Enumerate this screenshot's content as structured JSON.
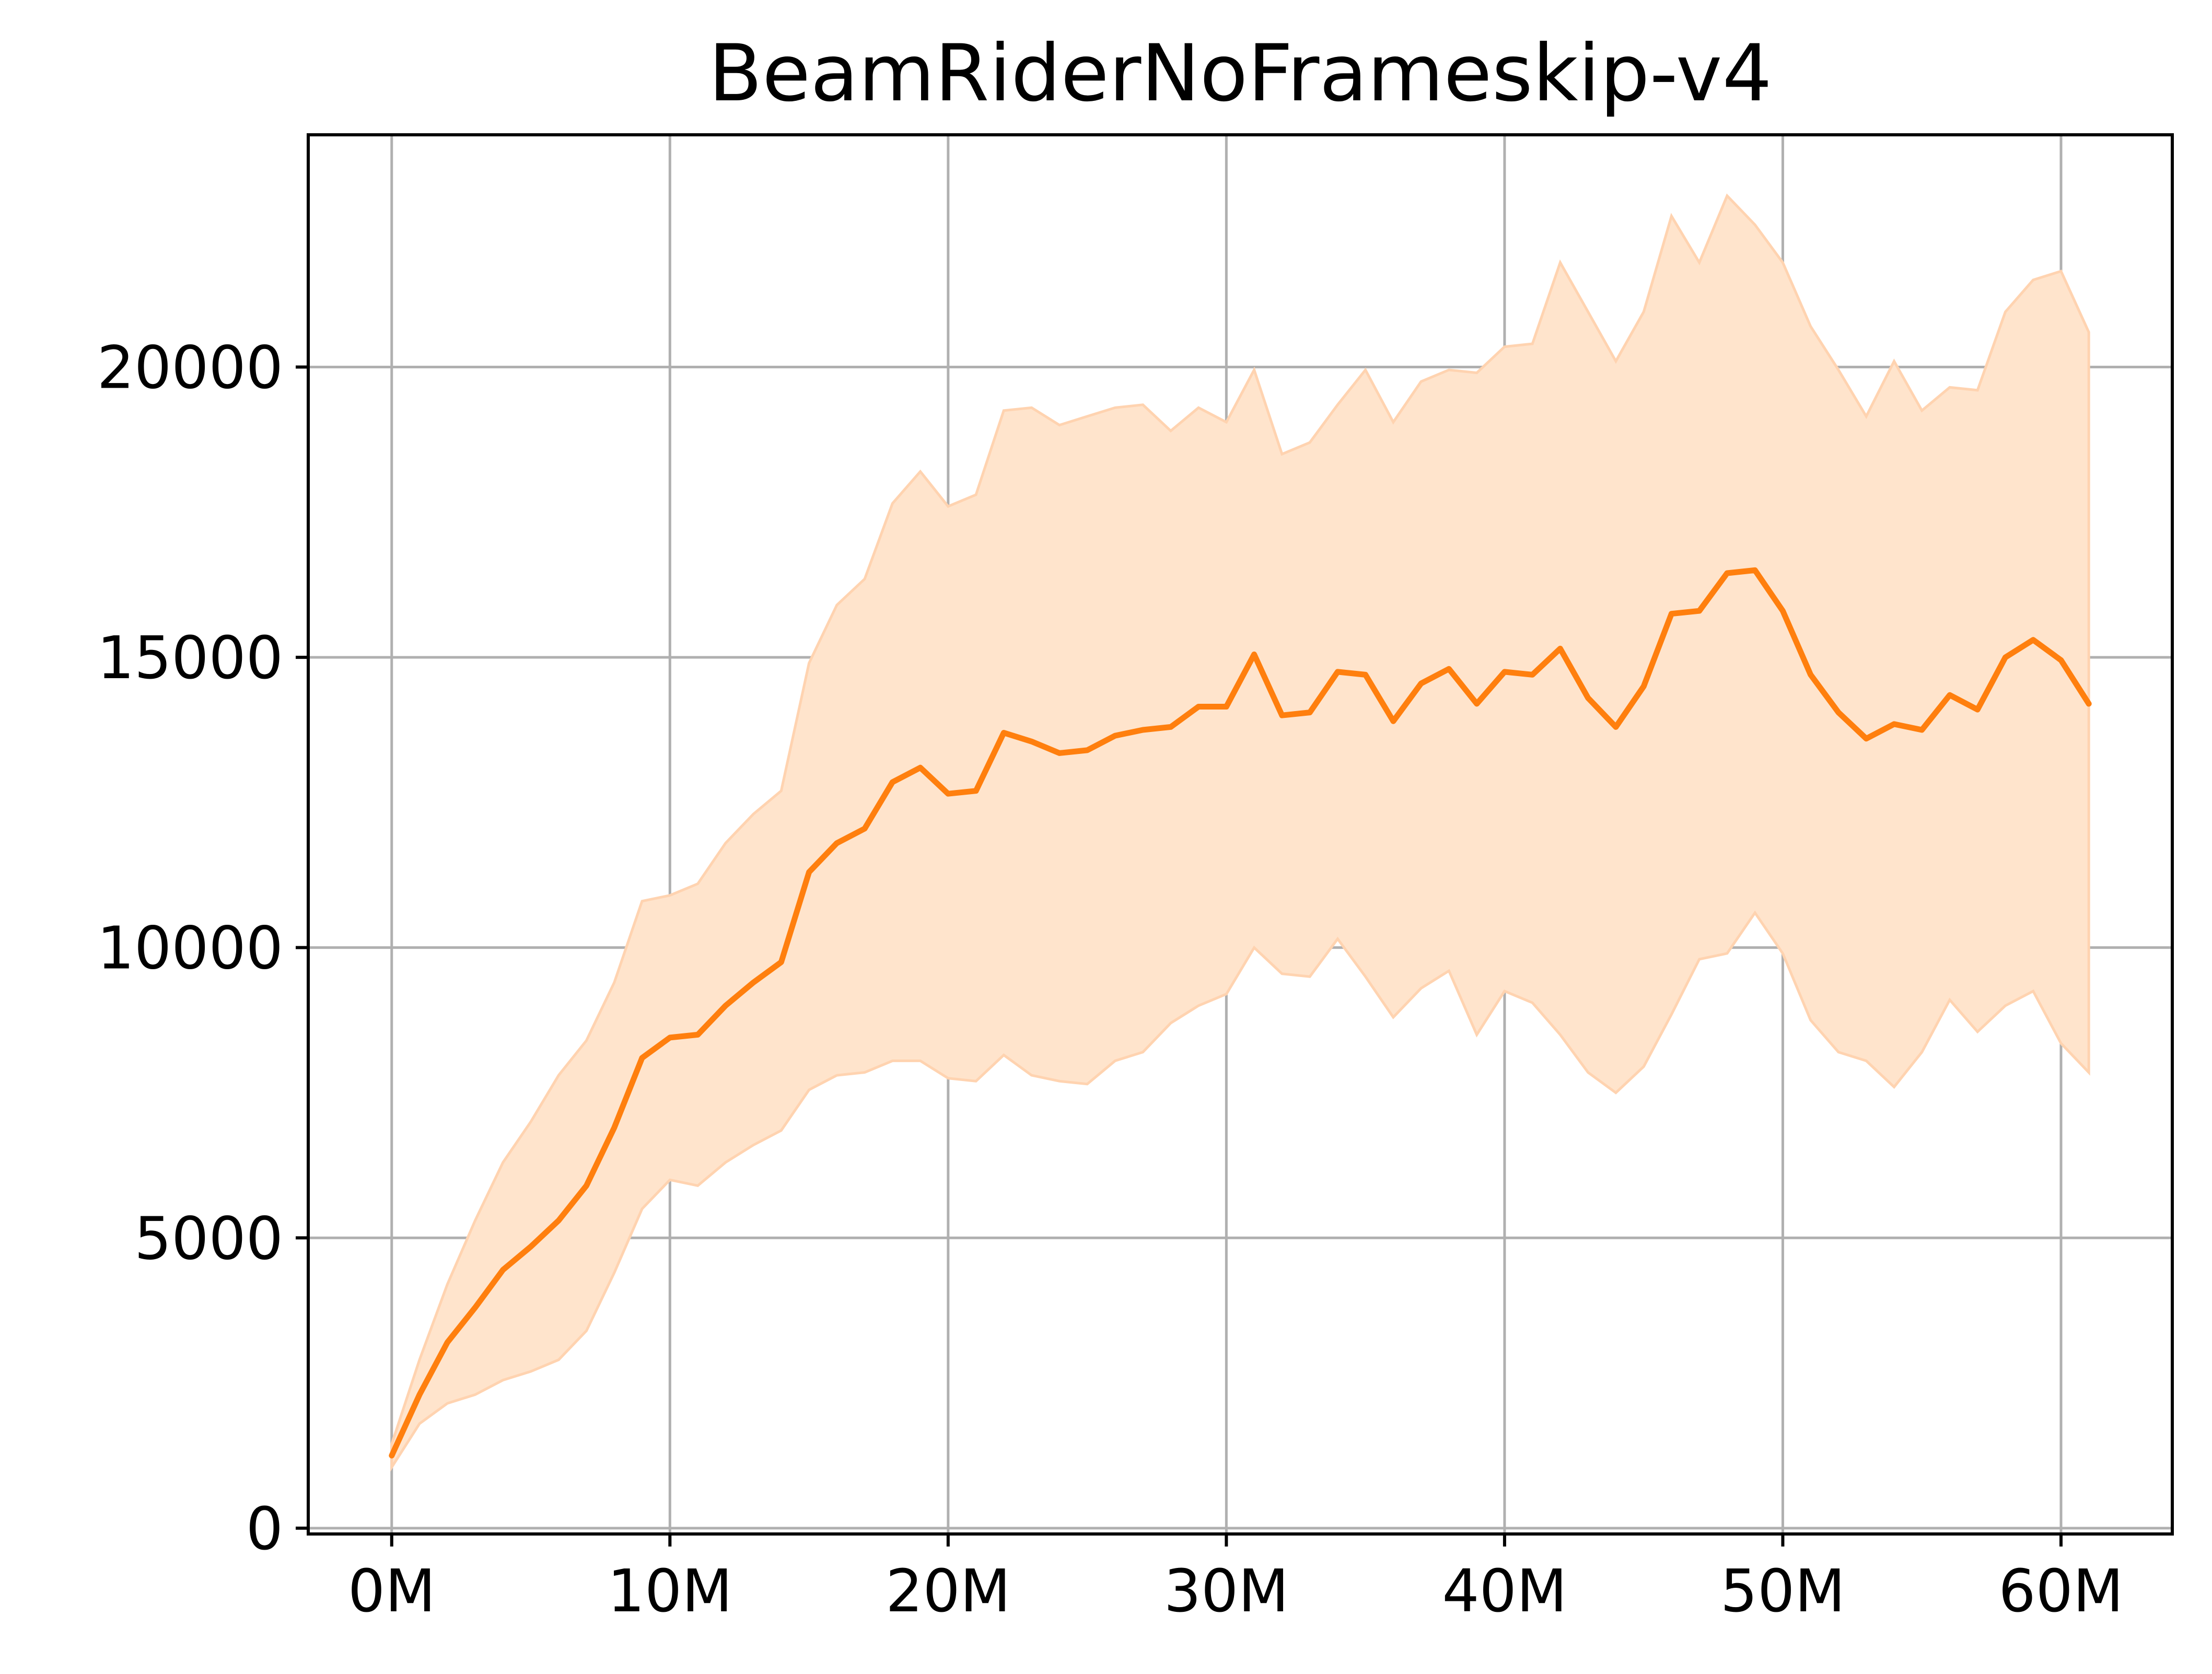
{
  "chart_data": {
    "type": "line",
    "title": "BeamRiderNoFrameskip-v4",
    "xlabel": "",
    "ylabel": "",
    "xlim": [
      -3,
      64
    ],
    "ylim": [
      -100,
      24000
    ],
    "x_ticks": [
      0,
      10,
      20,
      30,
      40,
      50,
      60
    ],
    "x_tick_labels": [
      "0M",
      "10M",
      "20M",
      "30M",
      "40M",
      "50M",
      "60M"
    ],
    "y_ticks": [
      0,
      5000,
      10000,
      15000,
      20000
    ],
    "y_tick_labels": [
      "0",
      "5000",
      "10000",
      "15000",
      "20000"
    ],
    "grid": true,
    "legend": "none",
    "colors": {
      "line": "#ff7f0e",
      "band": "#ffe4cc",
      "grid": "#b0b0b0"
    },
    "x": [
      0,
      1,
      2,
      3,
      4,
      5,
      6,
      7,
      8,
      9,
      10,
      11,
      12,
      13,
      14,
      15,
      16,
      17,
      18,
      19,
      20,
      21,
      22,
      23,
      24,
      25,
      26,
      27,
      28,
      29,
      30,
      31,
      32,
      33,
      34,
      35,
      36,
      37,
      38,
      39,
      40,
      41,
      42,
      43,
      44,
      45,
      46,
      47,
      48,
      49,
      50,
      51,
      52,
      53,
      54,
      55,
      56,
      57,
      58,
      59,
      60,
      61
    ],
    "series": [
      {
        "values": [
          1250,
          2300,
          3200,
          3800,
          4450,
          4850,
          5300,
          5900,
          6900,
          8100,
          8450,
          8500,
          9000,
          9400,
          9750,
          11300,
          11800,
          12050,
          12850,
          13100,
          12650,
          12700,
          13700,
          13550,
          13350,
          13400,
          13650,
          13750,
          13800,
          14150,
          14150,
          15050,
          14000,
          14050,
          14750,
          14700,
          13900,
          14550,
          14800,
          14200,
          14750,
          14700,
          15150,
          14300,
          13800,
          14500,
          15750,
          15800,
          16450,
          16500,
          15800,
          14700,
          14050,
          13600,
          13850,
          13750,
          14350,
          14100,
          15000,
          15300,
          14950,
          14200
        ],
        "lower": [
          1050,
          1800,
          2150,
          2300,
          2550,
          2700,
          2900,
          3400,
          4400,
          5500,
          6000,
          5900,
          6300,
          6600,
          6850,
          7550,
          7800,
          7850,
          8050,
          8050,
          7750,
          7700,
          8150,
          7800,
          7700,
          7650,
          8050,
          8200,
          8700,
          9000,
          9200,
          10000,
          9550,
          9500,
          10150,
          9500,
          8800,
          9300,
          9600,
          8500,
          9250,
          9050,
          8500,
          7850,
          7500,
          7950,
          8850,
          9800,
          9900,
          10600,
          9900,
          8750,
          8200,
          8050,
          7600,
          8200,
          9100,
          8550,
          9000,
          9250,
          8350,
          7850
        ],
        "upper": [
          1450,
          2900,
          4200,
          5300,
          6300,
          7000,
          7800,
          8400,
          9400,
          10800,
          10900,
          11100,
          11800,
          12300,
          12700,
          14900,
          15900,
          16350,
          17650,
          18200,
          17600,
          17800,
          19250,
          19300,
          19000,
          19150,
          19300,
          19350,
          18900,
          19300,
          19050,
          19950,
          18500,
          18700,
          19350,
          19950,
          19050,
          19750,
          19950,
          19900,
          20350,
          20400,
          21800,
          20950,
          20100,
          20950,
          22600,
          21800,
          22950,
          22450,
          21800,
          20700,
          19950,
          19150,
          20100,
          19250,
          19650,
          19600,
          20950,
          21500,
          21650,
          20600
        ]
      }
    ]
  }
}
